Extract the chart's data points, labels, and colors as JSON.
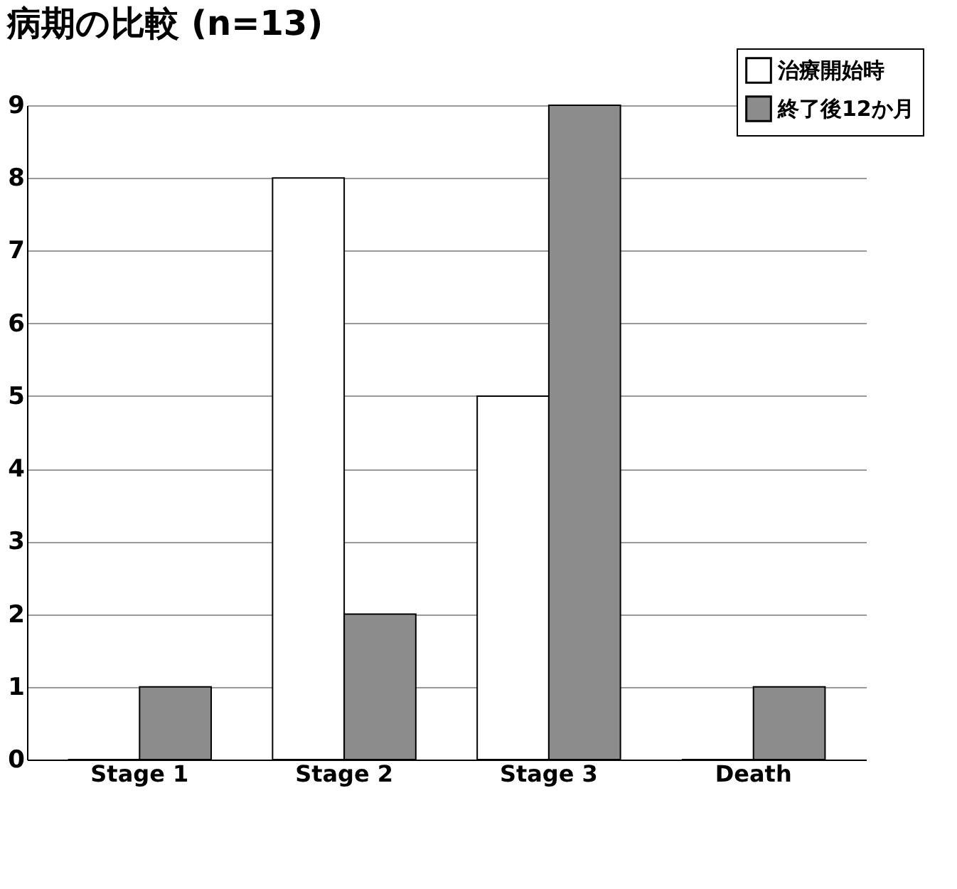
{
  "chart_data": {
    "type": "bar",
    "title": "病期の比較 (n=13)",
    "categories": [
      "Stage 1",
      "Stage 2",
      "Stage 3",
      "Death"
    ],
    "series": [
      {
        "name": "治療開始時",
        "color": "#ffffff",
        "values": [
          0,
          8,
          5,
          0
        ]
      },
      {
        "name": "終了後12か月",
        "color": "#8c8c8c",
        "values": [
          1,
          2,
          9,
          1
        ]
      }
    ],
    "ylim": [
      0,
      9
    ],
    "yticks": [
      0,
      1,
      2,
      3,
      4,
      5,
      6,
      7,
      8,
      9
    ],
    "grid": "y",
    "legend": "top right"
  }
}
